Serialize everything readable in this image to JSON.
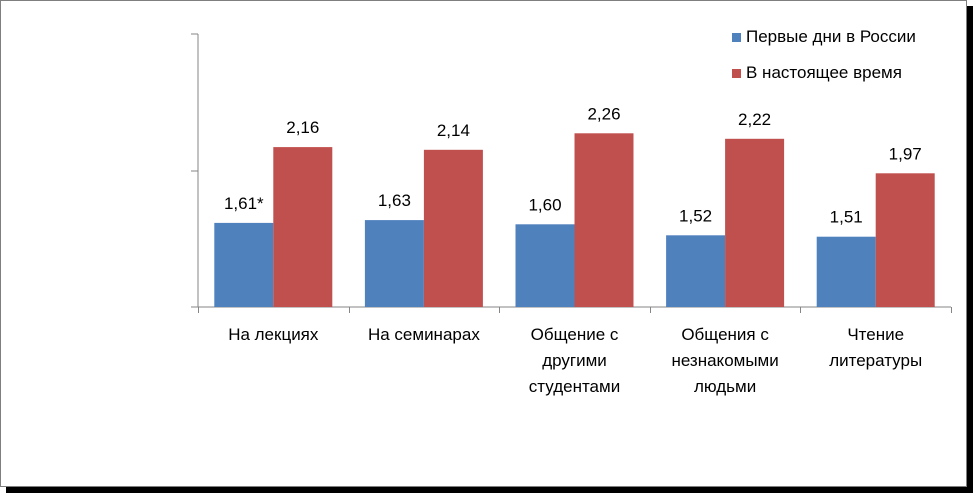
{
  "chart_data": {
    "type": "bar",
    "categories": [
      [
        "На лекциях"
      ],
      [
        "На семинарах"
      ],
      [
        "Общение с",
        "другими",
        "студентами"
      ],
      [
        "Общения с",
        "незнакомыми",
        "людьми"
      ],
      [
        "Чтение",
        "литературы"
      ]
    ],
    "series": [
      {
        "name": "Первые дни в России",
        "color": "#4f81bd",
        "values": [
          1.61,
          1.63,
          1.6,
          1.52,
          1.51
        ],
        "labels": [
          "1,61*",
          "1,63",
          "1,60",
          "1,52",
          "1,51"
        ]
      },
      {
        "name": "В настоящее время",
        "color": "#c0504d",
        "values": [
          2.16,
          2.14,
          2.26,
          2.22,
          1.97
        ],
        "labels": [
          "2,16",
          "2,14",
          "2,26",
          "2,22",
          "1,97"
        ]
      }
    ],
    "ylim": [
      1,
      2.98
    ],
    "grid": false,
    "legend_position": "top-right",
    "title": "",
    "xlabel": "",
    "ylabel": ""
  }
}
